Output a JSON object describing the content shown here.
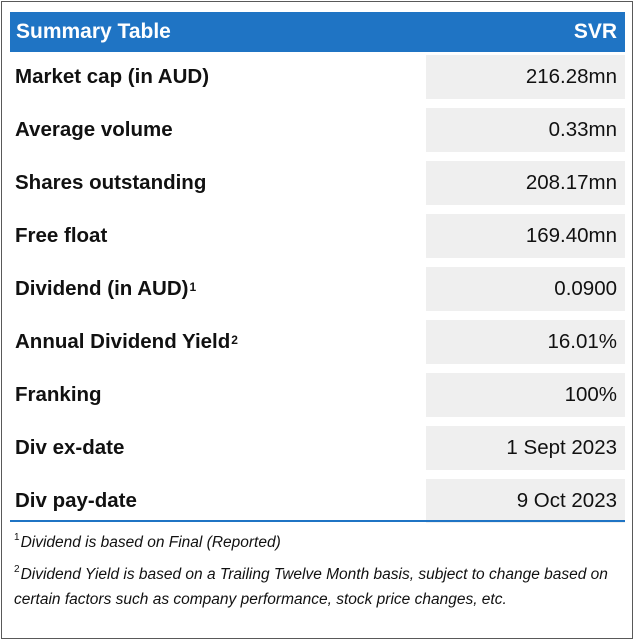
{
  "header": {
    "title": "Summary Table",
    "ticker": "SVR"
  },
  "rows": [
    {
      "label": "Market cap (in AUD)",
      "sup": "",
      "value": "216.28mn"
    },
    {
      "label": "Average volume",
      "sup": "",
      "value": "0.33mn"
    },
    {
      "label": "Shares outstanding",
      "sup": "",
      "value": "208.17mn"
    },
    {
      "label": "Free float",
      "sup": "",
      "value": "169.40mn"
    },
    {
      "label": "Dividend (in AUD)",
      "sup": "1",
      "value": "0.0900"
    },
    {
      "label": "Annual Dividend Yield",
      "sup": "2",
      "value": "16.01%"
    },
    {
      "label": "Franking",
      "sup": "",
      "value": "100%"
    },
    {
      "label": "Div ex-date",
      "sup": "",
      "value": "1 Sept 2023"
    },
    {
      "label": "Div pay-date",
      "sup": "",
      "value": "9 Oct 2023"
    }
  ],
  "notes": [
    {
      "marker": "1",
      "text": "Dividend is based on Final (Reported)"
    },
    {
      "marker": "2",
      "text": "Dividend Yield is based on a Trailing Twelve Month basis, subject to change based on certain factors such as company performance, stock price changes, etc."
    }
  ],
  "colors": {
    "header_bg": "#1f74c4",
    "header_text": "#ffffff",
    "value_bg": "#efefef",
    "border": "#595959"
  }
}
